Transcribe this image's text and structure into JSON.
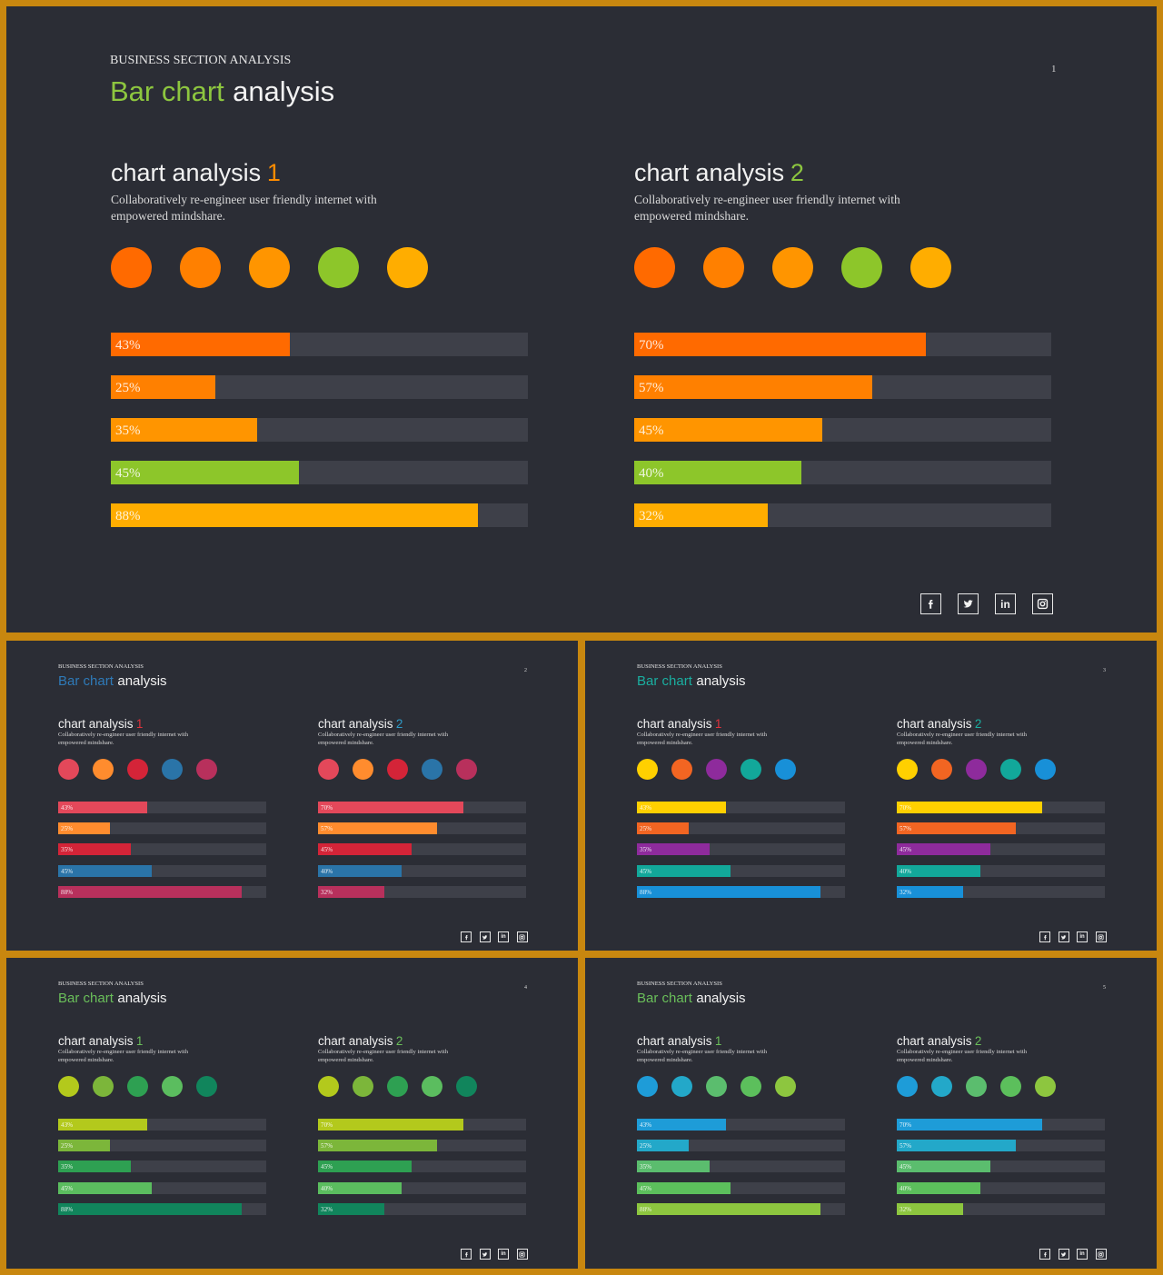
{
  "slides": [
    {
      "section_label": "BUSINESS SECTION ANALYSIS",
      "title_accent": "Bar chart",
      "title_rest": "analysis",
      "page_number": "1",
      "accent_color": "#8dc63f",
      "panels": [
        {
          "heading": "chart analysis",
          "num": "1",
          "num_color": "#ff8c00",
          "desc": "Collaboratively re-engineer user friendly internet with empowered mindshare.",
          "colors": [
            "#ff6a00",
            "#ff8000",
            "#ff9500",
            "#8dc62a",
            "#ffad00"
          ],
          "values": [
            43,
            25,
            35,
            45,
            88
          ]
        },
        {
          "heading": "chart analysis",
          "num": "2",
          "num_color": "#8dc63f",
          "desc": "Collaboratively re-engineer user friendly internet with empowered mindshare.",
          "colors": [
            "#ff6a00",
            "#ff8000",
            "#ff9500",
            "#8dc62a",
            "#ffad00"
          ],
          "values": [
            70,
            57,
            45,
            40,
            32
          ]
        }
      ]
    },
    {
      "section_label": "BUSINESS SECTION ANALYSIS",
      "title_accent": "Bar chart",
      "title_rest": "analysis",
      "page_number": "2",
      "accent_color": "#2e7ab8",
      "panels": [
        {
          "heading": "chart analysis",
          "num": "1",
          "num_color": "#e0323c",
          "desc": "Collaboratively re-engineer user friendly internet with empowered mindshare.",
          "colors": [
            "#e3485a",
            "#ff8c2e",
            "#d42438",
            "#2a74a8",
            "#b8305c"
          ],
          "values": [
            43,
            25,
            35,
            45,
            88
          ]
        },
        {
          "heading": "chart analysis",
          "num": "2",
          "num_color": "#2e9cc9",
          "desc": "Collaboratively re-engineer user friendly internet with empowered mindshare.",
          "colors": [
            "#e3485a",
            "#ff8c2e",
            "#d42438",
            "#2a74a8",
            "#b8305c"
          ],
          "values": [
            70,
            57,
            45,
            40,
            32
          ]
        }
      ]
    },
    {
      "section_label": "BUSINESS SECTION ANALYSIS",
      "title_accent": "Bar chart",
      "title_rest": "analysis",
      "page_number": "3",
      "accent_color": "#1aaea0",
      "panels": [
        {
          "heading": "chart analysis",
          "num": "1",
          "num_color": "#e0323c",
          "desc": "Collaboratively re-engineer user friendly internet with empowered mindshare.",
          "colors": [
            "#ffd000",
            "#f26522",
            "#8e2b9c",
            "#12a89a",
            "#1890d8"
          ],
          "values": [
            43,
            25,
            35,
            45,
            88
          ]
        },
        {
          "heading": "chart analysis",
          "num": "2",
          "num_color": "#1aaea0",
          "desc": "Collaboratively re-engineer user friendly internet with empowered mindshare.",
          "colors": [
            "#ffd000",
            "#f26522",
            "#8e2b9c",
            "#12a89a",
            "#1890d8"
          ],
          "values": [
            70,
            57,
            45,
            40,
            32
          ]
        }
      ]
    },
    {
      "section_label": "BUSINESS SECTION ANALYSIS",
      "title_accent": "Bar chart",
      "title_rest": "analysis",
      "page_number": "4",
      "accent_color": "#6abf5a",
      "panels": [
        {
          "heading": "chart analysis",
          "num": "1",
          "num_color": "#6abf5a",
          "desc": "Collaboratively re-engineer user friendly internet with empowered mindshare.",
          "colors": [
            "#b3c91c",
            "#7cb63a",
            "#2ea052",
            "#5bbd5f",
            "#11855c"
          ],
          "values": [
            43,
            25,
            35,
            45,
            88
          ]
        },
        {
          "heading": "chart analysis",
          "num": "2",
          "num_color": "#6abf5a",
          "desc": "Collaboratively re-engineer user friendly internet with empowered mindshare.",
          "colors": [
            "#b3c91c",
            "#7cb63a",
            "#2ea052",
            "#5bbd5f",
            "#11855c"
          ],
          "values": [
            70,
            57,
            45,
            40,
            32
          ]
        }
      ]
    },
    {
      "section_label": "BUSINESS SECTION ANALYSIS",
      "title_accent": "Bar chart",
      "title_rest": "analysis",
      "page_number": "5",
      "accent_color": "#6abf5a",
      "panels": [
        {
          "heading": "chart analysis",
          "num": "1",
          "num_color": "#6abf5a",
          "desc": "Collaboratively re-engineer user friendly internet with empowered mindshare.",
          "colors": [
            "#1e9cd8",
            "#23a8c9",
            "#5bbd6e",
            "#5cbf5c",
            "#8dc63f"
          ],
          "values": [
            43,
            25,
            35,
            45,
            88
          ]
        },
        {
          "heading": "chart analysis",
          "num": "2",
          "num_color": "#6abf5a",
          "desc": "Collaboratively re-engineer user friendly internet with empowered mindshare.",
          "colors": [
            "#1e9cd8",
            "#23a8c9",
            "#5bbd6e",
            "#5cbf5c",
            "#8dc63f"
          ],
          "values": [
            70,
            57,
            45,
            40,
            32
          ]
        }
      ]
    }
  ],
  "social_icons": [
    "facebook-icon",
    "twitter-icon",
    "linkedin-icon",
    "instagram-icon"
  ],
  "chart_data": [
    {
      "type": "bar",
      "title": "chart analysis 1",
      "values": [
        43,
        25,
        35,
        45,
        88
      ],
      "unit": "%",
      "ylim": [
        0,
        100
      ]
    },
    {
      "type": "bar",
      "title": "chart analysis 2",
      "values": [
        70,
        57,
        45,
        40,
        32
      ],
      "unit": "%",
      "ylim": [
        0,
        100
      ]
    }
  ]
}
